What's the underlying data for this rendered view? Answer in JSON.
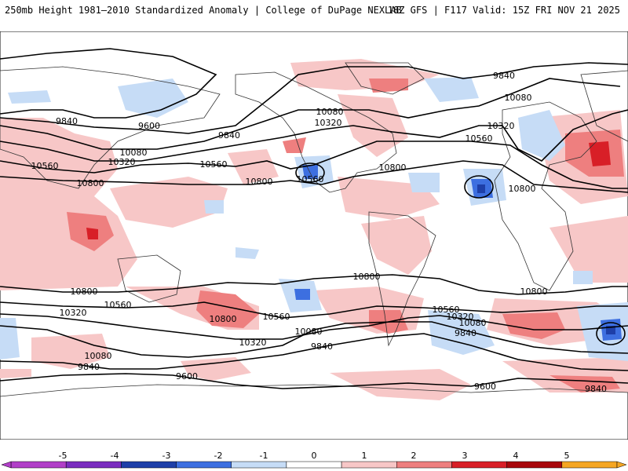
{
  "header": {
    "title_left": "250mb Height 1981–2010 Standardized Anomaly | College of DuPage NEXLAB",
    "title_right": "18Z GFS | F117 Valid: 15Z FRI NOV 21 2025"
  },
  "contour_labels": [
    "9840",
    "9600",
    "10080",
    "10320",
    "10560",
    "10800",
    "9840",
    "10080",
    "10320",
    "10560",
    "10800",
    "10560",
    "10800",
    "9840",
    "10080",
    "10320",
    "10560",
    "10800",
    "10800",
    "10320",
    "10560",
    "10800",
    "9840",
    "10080",
    "10320",
    "10560",
    "10800",
    "9840",
    "10080",
    "9600",
    "10560",
    "10320",
    "10080",
    "9840",
    "10800",
    "10800",
    "9600",
    "9840"
  ],
  "colorbar": {
    "ticks": [
      "-5",
      "-4",
      "-3",
      "-2",
      "-1",
      "0",
      "1",
      "2",
      "3",
      "4",
      "5"
    ],
    "colors": [
      "#b13fc8",
      "#7a2dbf",
      "#1e3fa8",
      "#3d6fe0",
      "#c6dcf6",
      "#ffffff",
      "#f7c7c7",
      "#ee7f7f",
      "#d81f27",
      "#a8070b",
      "#f5a623"
    ]
  },
  "colors": {
    "pos_light": "#f7c7c7",
    "pos_mid": "#ee7f7f",
    "pos_strong": "#d81f27",
    "neg_light": "#c6dcf6",
    "neg_mid": "#3d6fe0",
    "neg_strong": "#1e3fa8"
  }
}
